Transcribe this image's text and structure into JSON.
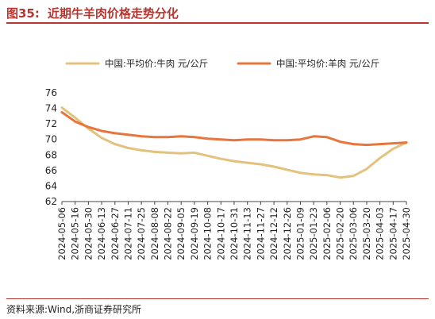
{
  "figure": {
    "number": "图35:",
    "title": "近期牛羊肉价格走势分化",
    "source": "资料来源:Wind,浙商证券研究所"
  },
  "chart_data": {
    "type": "line",
    "title": "",
    "xlabel": "",
    "ylabel": "",
    "ylim": [
      62,
      76
    ],
    "yticks": [
      62,
      64,
      66,
      68,
      70,
      72,
      74,
      76
    ],
    "grid": false,
    "legend_position": "top",
    "x": [
      "2024-05-06",
      "2024-05-16",
      "2024-05-30",
      "2024-06-13",
      "2024-06-27",
      "2024-07-11",
      "2024-07-25",
      "2024-08-08",
      "2024-08-22",
      "2024-09-05",
      "2024-09-19",
      "2024-10-08",
      "2024-10-17",
      "2024-10-31",
      "2024-11-13",
      "2024-11-27",
      "2024-12-12",
      "2024-12-26",
      "2025-01-09",
      "2025-01-23",
      "2025-02-06",
      "2025-02-20",
      "2025-03-06",
      "2025-03-20",
      "2025-04-03",
      "2025-04-17",
      "2025-04-30"
    ],
    "series": [
      {
        "name": "中国:平均价:牛肉 元/公斤",
        "color": "#e2c27c",
        "values": [
          74.1,
          72.8,
          71.4,
          70.2,
          69.4,
          68.9,
          68.6,
          68.4,
          68.3,
          68.2,
          68.3,
          67.9,
          67.5,
          67.2,
          67.0,
          66.8,
          66.5,
          66.1,
          65.7,
          65.5,
          65.4,
          65.1,
          65.3,
          66.2,
          67.6,
          68.8,
          69.6
        ]
      },
      {
        "name": "中国:平均价:羊肉 元/公斤",
        "color": "#e8763c",
        "values": [
          73.5,
          72.3,
          71.6,
          71.1,
          70.8,
          70.6,
          70.4,
          70.3,
          70.3,
          70.4,
          70.3,
          70.1,
          70.0,
          69.9,
          70.0,
          70.0,
          69.9,
          69.9,
          70.0,
          70.4,
          70.3,
          69.7,
          69.4,
          69.3,
          69.4,
          69.5,
          69.6
        ]
      }
    ]
  }
}
